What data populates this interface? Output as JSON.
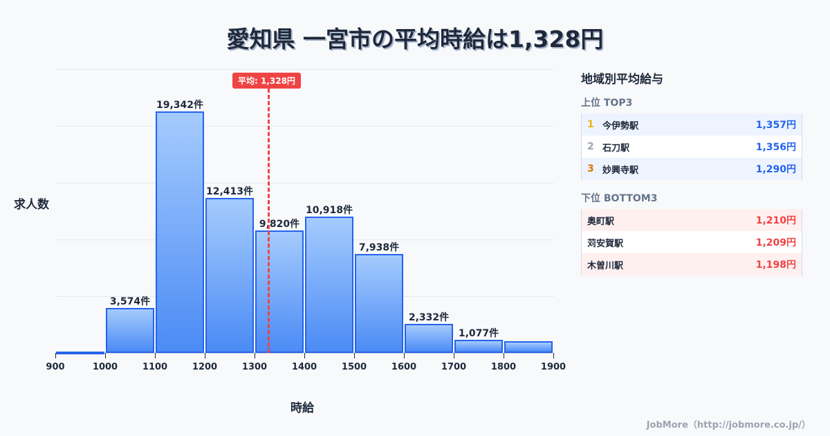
{
  "title": "愛知県 一宮市の平均時給は1,328円",
  "chart_data": {
    "type": "bar",
    "title": "愛知県 一宮市の平均時給は1,328円",
    "xlabel": "時給",
    "ylabel": "求人数",
    "bins": [
      900,
      1000,
      1100,
      1200,
      1300,
      1400,
      1500,
      1600,
      1700,
      1800,
      1900
    ],
    "categories": [
      "900-1000",
      "1000-1100",
      "1100-1200",
      "1200-1300",
      "1300-1400",
      "1400-1500",
      "1500-1600",
      "1600-1700",
      "1700-1800",
      "1800-1900"
    ],
    "values": [
      50,
      3574,
      19342,
      12413,
      9820,
      10918,
      7938,
      2332,
      1077,
      930
    ],
    "value_labels": [
      "",
      "3,574件",
      "19,342件",
      "12,413件",
      "9,820件",
      "10,918件",
      "7,938件",
      "2,332件",
      "1,077件",
      ""
    ],
    "xticks": [
      "900",
      "1000",
      "1100",
      "1200",
      "1300",
      "1400",
      "1500",
      "1600",
      "1700",
      "1800",
      "1900"
    ],
    "ylim": [
      0,
      22700
    ],
    "grid": true,
    "annotation": {
      "label": "平均: 1,328円",
      "x": 1328,
      "style": "dashed red line"
    },
    "colors": {
      "bar_fill_top": "#a5cbfd",
      "bar_fill_bottom": "#4b8bf5",
      "bar_border": "#2563eb",
      "average": "#ef4444"
    }
  },
  "panel": {
    "title": "地域別平均給与",
    "top": {
      "label": "上位 TOP3",
      "items": [
        {
          "rank": "1",
          "name": "今伊勢駅",
          "value": "1,357円",
          "rank_color": "#eab308"
        },
        {
          "rank": "2",
          "name": "石刀駅",
          "value": "1,356円",
          "rank_color": "#9ca3af"
        },
        {
          "rank": "3",
          "name": "妙興寺駅",
          "value": "1,290円",
          "rank_color": "#d97706"
        }
      ]
    },
    "bottom": {
      "label": "下位 BOTTOM3",
      "items": [
        {
          "name": "奥町駅",
          "value": "1,210円"
        },
        {
          "name": "苅安賀駅",
          "value": "1,209円"
        },
        {
          "name": "木曽川駅",
          "value": "1,198円"
        }
      ]
    }
  },
  "footer": "JobMore（http://jobmore.co.jp/）"
}
